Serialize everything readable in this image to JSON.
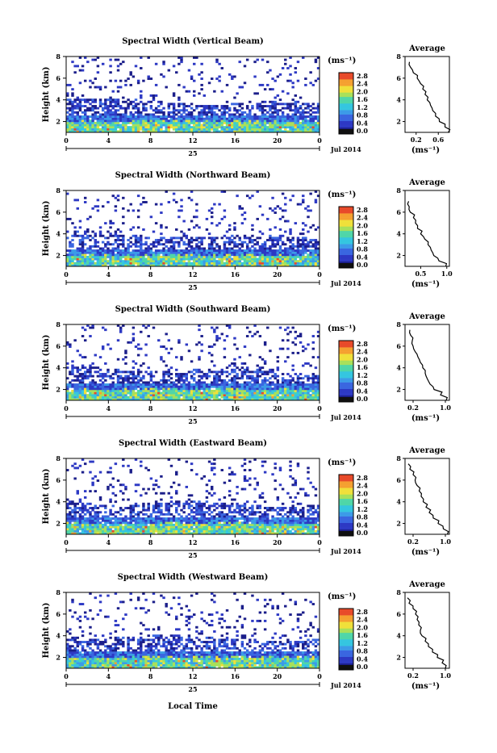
{
  "colorbar": {
    "unit": "(ms⁻¹)",
    "ticks": [
      "2.8",
      "2.4",
      "2.0",
      "1.6",
      "1.2",
      "0.8",
      "0.4",
      "0.0"
    ]
  },
  "average_title": "Average",
  "average_unit": "(ms⁻¹)",
  "common": {
    "ylabel": "Height (km)",
    "yticks": [
      "8",
      "6",
      "4",
      "2"
    ],
    "xticks": [
      "0",
      "4",
      "8",
      "12",
      "16",
      "20",
      "0"
    ],
    "day": "25",
    "month_label": "Jul 2014",
    "xlabel": "Local Time"
  },
  "colors": {
    "scale": [
      "#1b1e8a",
      "#2d39c4",
      "#3a66e0",
      "#3c9be8",
      "#35c6e0",
      "#4fd6a8",
      "#a8e05a",
      "#f0e03a",
      "#f5a030",
      "#e84a2a"
    ]
  },
  "chart_data": [
    {
      "type": "heatmap",
      "title": "Spectral Width (Vertical Beam)",
      "xlabel": "",
      "ylabel": "Height (km)",
      "xlim": [
        0,
        24
      ],
      "ylim": [
        1,
        8
      ],
      "colorbar_range": [
        0.0,
        2.8
      ],
      "average_profile": {
        "xticks": [
          "0.2",
          "0.6"
        ],
        "xlim": [
          0.0,
          0.8
        ],
        "height": [
          1.0,
          1.5,
          2.0,
          2.5,
          3.0,
          3.5,
          4.0,
          4.5,
          5.0,
          5.5,
          6.0,
          6.5,
          7.0,
          7.5
        ],
        "value": [
          0.78,
          0.72,
          0.62,
          0.55,
          0.5,
          0.46,
          0.4,
          0.36,
          0.32,
          0.28,
          0.22,
          0.15,
          0.1,
          0.08
        ]
      }
    },
    {
      "type": "heatmap",
      "title": "Spectral Width (Northward Beam)",
      "xlabel": "",
      "ylabel": "Height (km)",
      "xlim": [
        0,
        24
      ],
      "ylim": [
        1,
        8
      ],
      "colorbar_range": [
        0.0,
        2.8
      ],
      "average_profile": {
        "xticks": [
          "0.5",
          "1.0"
        ],
        "xlim": [
          0.2,
          1.05
        ],
        "height": [
          1.0,
          1.5,
          2.0,
          2.5,
          3.0,
          3.5,
          4.0,
          4.5,
          5.0,
          5.5,
          6.0,
          6.5,
          7.0
        ],
        "value": [
          0.98,
          0.85,
          0.75,
          0.7,
          0.64,
          0.58,
          0.5,
          0.44,
          0.4,
          0.36,
          0.3,
          0.28,
          0.27
        ]
      }
    },
    {
      "type": "heatmap",
      "title": "Spectral Width (Southward Beam)",
      "xlabel": "",
      "ylabel": "Height (km)",
      "xlim": [
        0,
        24
      ],
      "ylim": [
        1,
        8
      ],
      "colorbar_range": [
        0.0,
        2.8
      ],
      "average_profile": {
        "xticks": [
          "0.2",
          "1.0"
        ],
        "xlim": [
          0.0,
          1.1
        ],
        "height": [
          1.0,
          1.5,
          2.0,
          2.5,
          3.0,
          3.5,
          4.0,
          4.5,
          5.0,
          5.5,
          6.0,
          6.5,
          7.0,
          7.5
        ],
        "value": [
          1.02,
          0.88,
          0.72,
          0.62,
          0.55,
          0.5,
          0.44,
          0.38,
          0.32,
          0.25,
          0.2,
          0.18,
          0.14,
          0.12
        ]
      }
    },
    {
      "type": "heatmap",
      "title": "Spectral Width (Eastward Beam)",
      "xlabel": "",
      "ylabel": "Height (km)",
      "xlim": [
        0,
        24
      ],
      "ylim": [
        1,
        8
      ],
      "colorbar_range": [
        0.0,
        2.8
      ],
      "average_profile": {
        "xticks": [
          "0.2",
          "1.0"
        ],
        "xlim": [
          0.0,
          1.1
        ],
        "height": [
          1.0,
          1.5,
          2.0,
          2.5,
          3.0,
          3.5,
          4.0,
          4.5,
          5.0,
          5.5,
          6.0,
          6.5,
          7.0,
          7.5
        ],
        "value": [
          1.05,
          0.95,
          0.82,
          0.7,
          0.6,
          0.52,
          0.45,
          0.4,
          0.35,
          0.3,
          0.25,
          0.2,
          0.12,
          0.08
        ]
      }
    },
    {
      "type": "heatmap",
      "title": "Spectral Width (Westward Beam)",
      "xlabel": "Local Time",
      "ylabel": "Height (km)",
      "xlim": [
        0,
        24
      ],
      "ylim": [
        1,
        8
      ],
      "colorbar_range": [
        0.0,
        2.8
      ],
      "average_profile": {
        "xticks": [
          "0.2",
          "1.0"
        ],
        "xlim": [
          0.0,
          1.1
        ],
        "height": [
          1.0,
          1.5,
          2.0,
          2.5,
          3.0,
          3.5,
          4.0,
          4.5,
          5.0,
          5.5,
          6.0,
          6.5,
          7.0,
          7.5
        ],
        "value": [
          1.0,
          0.92,
          0.8,
          0.68,
          0.58,
          0.5,
          0.42,
          0.38,
          0.34,
          0.3,
          0.26,
          0.2,
          0.1,
          0.06
        ]
      }
    }
  ]
}
